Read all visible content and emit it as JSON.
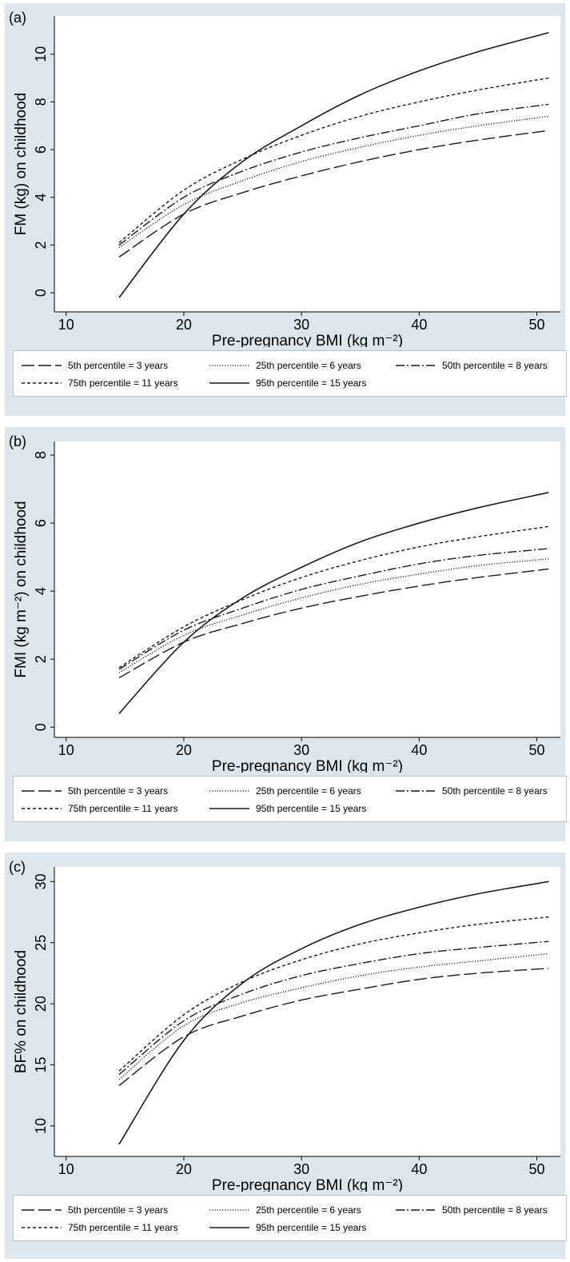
{
  "legend": [
    {
      "label": "5th percentile = 3 years",
      "dash": "long-dash"
    },
    {
      "label": "25th percentile = 6 years",
      "dash": "dotted"
    },
    {
      "label": "50th percentile = 8 years",
      "dash": "dash-dot"
    },
    {
      "label": "75th percentile = 11 years",
      "dash": "short-dash"
    },
    {
      "label": "95th percentile = 15 years",
      "dash": "solid"
    }
  ],
  "chart_data": [
    {
      "panel": "(a)",
      "type": "line",
      "xlabel": "Pre-pregnancy BMI (kg m⁻²)",
      "ylabel": "FM (kg) on childhood",
      "xlim": [
        9,
        52
      ],
      "ylim": [
        -0.8,
        11.6
      ],
      "xticks": [
        10,
        20,
        30,
        40,
        50
      ],
      "yticks": [
        0,
        2,
        4,
        6,
        8,
        10
      ],
      "grid": false,
      "legend_position": "bottom",
      "series": [
        {
          "name": "5th percentile = 3 years",
          "x": [
            14.5,
            20,
            25,
            30,
            35,
            40,
            45,
            51
          ],
          "y": [
            1.5,
            3.3,
            4.2,
            4.9,
            5.5,
            6.0,
            6.4,
            6.8
          ]
        },
        {
          "name": "25th percentile = 6 years",
          "x": [
            14.5,
            20,
            25,
            30,
            35,
            40,
            45,
            51
          ],
          "y": [
            1.9,
            3.7,
            4.7,
            5.5,
            6.1,
            6.6,
            7.0,
            7.4
          ]
        },
        {
          "name": "50th percentile = 8 years",
          "x": [
            14.5,
            20,
            25,
            30,
            35,
            40,
            45,
            51
          ],
          "y": [
            2.0,
            4.0,
            5.1,
            5.9,
            6.5,
            7.0,
            7.5,
            7.9
          ]
        },
        {
          "name": "75th percentile = 11 years",
          "x": [
            14.5,
            20,
            25,
            30,
            35,
            40,
            45,
            51
          ],
          "y": [
            2.1,
            4.3,
            5.6,
            6.6,
            7.4,
            8.0,
            8.5,
            9.0
          ]
        },
        {
          "name": "95th percentile = 15 years",
          "x": [
            14.5,
            20,
            25,
            30,
            35,
            40,
            45,
            51
          ],
          "y": [
            -0.2,
            3.3,
            5.5,
            7.0,
            8.3,
            9.3,
            10.1,
            10.9
          ]
        }
      ]
    },
    {
      "panel": "(b)",
      "type": "line",
      "xlabel": "Pre-pregnancy BMI (kg m⁻²)",
      "ylabel": "FMI (kg m⁻²) on childhood",
      "xlim": [
        9,
        52
      ],
      "ylim": [
        -0.3,
        8.4
      ],
      "xticks": [
        10,
        20,
        30,
        40,
        50
      ],
      "yticks": [
        0,
        2,
        4,
        6,
        8
      ],
      "grid": false,
      "legend_position": "bottom",
      "series": [
        {
          "name": "5th percentile = 3 years",
          "x": [
            14.5,
            20,
            25,
            30,
            35,
            40,
            45,
            51
          ],
          "y": [
            1.45,
            2.5,
            3.05,
            3.5,
            3.85,
            4.15,
            4.4,
            4.65
          ]
        },
        {
          "name": "25th percentile = 6 years",
          "x": [
            14.5,
            20,
            25,
            30,
            35,
            40,
            45,
            51
          ],
          "y": [
            1.6,
            2.7,
            3.3,
            3.8,
            4.2,
            4.5,
            4.75,
            4.95
          ]
        },
        {
          "name": "50th percentile = 8 years",
          "x": [
            14.5,
            20,
            25,
            30,
            35,
            40,
            45,
            51
          ],
          "y": [
            1.7,
            2.85,
            3.5,
            4.05,
            4.45,
            4.8,
            5.05,
            5.25
          ]
        },
        {
          "name": "75th percentile = 11 years",
          "x": [
            14.5,
            20,
            25,
            30,
            35,
            40,
            45,
            51
          ],
          "y": [
            1.75,
            2.95,
            3.75,
            4.4,
            4.9,
            5.3,
            5.6,
            5.9
          ]
        },
        {
          "name": "95th percentile = 15 years",
          "x": [
            14.5,
            20,
            25,
            30,
            35,
            40,
            45,
            51
          ],
          "y": [
            0.4,
            2.5,
            3.8,
            4.7,
            5.45,
            6.0,
            6.45,
            6.9
          ]
        }
      ]
    },
    {
      "panel": "(c)",
      "type": "line",
      "xlabel": "Pre-pregnancy BMI (kg m⁻²)",
      "ylabel": "BF% on childhood",
      "xlim": [
        9,
        52
      ],
      "ylim": [
        7.5,
        31.2
      ],
      "xticks": [
        10,
        20,
        30,
        40,
        50
      ],
      "yticks": [
        10,
        15,
        20,
        25,
        30
      ],
      "grid": false,
      "legend_position": "bottom",
      "series": [
        {
          "name": "5th percentile = 3 years",
          "x": [
            14.5,
            20,
            25,
            30,
            35,
            40,
            45,
            51
          ],
          "y": [
            13.3,
            17.3,
            19.0,
            20.3,
            21.2,
            22.0,
            22.5,
            22.9
          ]
        },
        {
          "name": "25th percentile = 6 years",
          "x": [
            14.5,
            20,
            25,
            30,
            35,
            40,
            45,
            51
          ],
          "y": [
            13.8,
            18.2,
            20.1,
            21.3,
            22.3,
            23.0,
            23.5,
            24.1
          ]
        },
        {
          "name": "50th percentile = 8 years",
          "x": [
            14.5,
            20,
            25,
            30,
            35,
            40,
            45,
            51
          ],
          "y": [
            14.2,
            18.6,
            20.8,
            22.3,
            23.3,
            24.1,
            24.6,
            25.1
          ]
        },
        {
          "name": "75th percentile = 11 years",
          "x": [
            14.5,
            20,
            25,
            30,
            35,
            40,
            45,
            51
          ],
          "y": [
            14.5,
            19.1,
            21.8,
            23.6,
            24.9,
            25.8,
            26.5,
            27.1
          ]
        },
        {
          "name": "95th percentile = 15 years",
          "x": [
            14.5,
            20,
            25,
            30,
            35,
            40,
            45,
            51
          ],
          "y": [
            8.5,
            17.0,
            21.7,
            24.5,
            26.5,
            27.9,
            29.0,
            30.0
          ]
        }
      ]
    }
  ]
}
